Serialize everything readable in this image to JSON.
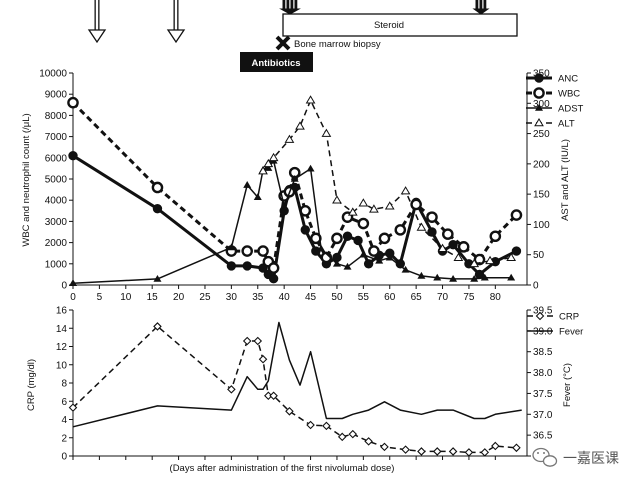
{
  "annotations": {
    "steroid": "Steroid",
    "biopsy": "Bone marrow biopsy",
    "antibiotics": "Antibiotics"
  },
  "watermark": "一嘉医课",
  "colors": {
    "line": "#111111",
    "antibiotics_bg": "#111111",
    "antibiotics_fg": "#ffffff",
    "background": "#ffffff"
  },
  "chart_data": [
    {
      "type": "line",
      "panel": "top",
      "xlabel": "",
      "ylabel_left": "WBC and neutrophil count (/μL)",
      "ylabel_right": "AST and ALT (IU/L)",
      "xlim": [
        0,
        86
      ],
      "ylim_left": [
        0,
        10000
      ],
      "ylim_right": [
        0,
        350
      ],
      "x_ticks": [
        0,
        5,
        10,
        15,
        20,
        25,
        30,
        35,
        40,
        45,
        50,
        55,
        60,
        65,
        70,
        75,
        80
      ],
      "y_ticks_left": [
        0,
        1000,
        2000,
        3000,
        4000,
        5000,
        6000,
        7000,
        8000,
        9000,
        10000
      ],
      "y_ticks_right": [
        0,
        50,
        100,
        150,
        200,
        250,
        300,
        350
      ],
      "legend": [
        "ANC",
        "WBC",
        "ADST",
        "ALT"
      ],
      "legend_position": "top-right",
      "series": [
        {
          "name": "ANC",
          "axis": "left",
          "style": "solid-thick",
          "marker": "filled-circle",
          "x": [
            0,
            16,
            30,
            33,
            36,
            37,
            38,
            40,
            41,
            42,
            44,
            46,
            48,
            50,
            52,
            54,
            56,
            58,
            60,
            62,
            65,
            68,
            70,
            72,
            75,
            77,
            80,
            84
          ],
          "y": [
            6100,
            3600,
            900,
            900,
            800,
            500,
            300,
            3500,
            4500,
            4600,
            2600,
            1600,
            1000,
            1300,
            2300,
            2100,
            1000,
            1400,
            1500,
            1000,
            3900,
            2500,
            1600,
            1900,
            1000,
            500,
            1100,
            1600
          ]
        },
        {
          "name": "WBC",
          "axis": "left",
          "style": "dashed-thick",
          "marker": "open-circle",
          "x": [
            0,
            16,
            30,
            33,
            36,
            37,
            38,
            40,
            41,
            42,
            44,
            46,
            48,
            50,
            52,
            55,
            57,
            59,
            62,
            65,
            68,
            71,
            74,
            77,
            80,
            84
          ],
          "y": [
            8600,
            4600,
            1600,
            1600,
            1600,
            1100,
            800,
            4200,
            4400,
            5300,
            3500,
            2200,
            1300,
            2200,
            3200,
            2900,
            1600,
            2200,
            2600,
            3800,
            3200,
            2400,
            1800,
            1200,
            2300,
            3300
          ]
        },
        {
          "name": "ADST",
          "axis": "right",
          "style": "solid",
          "marker": "filled-triangle",
          "x": [
            0,
            16,
            30,
            33,
            35,
            36,
            37,
            38,
            40,
            42,
            45,
            47,
            50,
            52,
            55,
            58,
            60,
            63,
            66,
            69,
            72,
            76,
            78,
            83
          ],
          "y": [
            3,
            10,
            62,
            165,
            145,
            190,
            193,
            205,
            130,
            175,
            192,
            60,
            35,
            30,
            50,
            40,
            45,
            25,
            15,
            12,
            10,
            10,
            12,
            12
          ]
        },
        {
          "name": "ALT",
          "axis": "right",
          "style": "dashed",
          "marker": "open-triangle",
          "x": [
            36,
            37,
            38,
            41,
            43,
            45,
            48,
            50,
            53,
            55,
            57,
            60,
            63,
            66,
            70,
            73,
            76,
            79,
            83
          ],
          "y": [
            188,
            200,
            210,
            240,
            262,
            305,
            250,
            140,
            120,
            135,
            125,
            130,
            155,
            95,
            60,
            45,
            35,
            40,
            45
          ]
        }
      ]
    },
    {
      "type": "line",
      "panel": "bottom",
      "xlabel": "(Days after administration of the first nivolumab dose)",
      "ylabel_left": "CRP (mg/dl)",
      "ylabel_right": "Fever (°C)",
      "xlim": [
        0,
        86
      ],
      "ylim_left": [
        0,
        16
      ],
      "ylim_right": [
        36.0,
        39.5
      ],
      "y_ticks_left": [
        0,
        2,
        4,
        6,
        8,
        10,
        12,
        14,
        16
      ],
      "y_ticks_right": [
        36.0,
        36.5,
        37.0,
        37.5,
        38.0,
        38.5,
        39.0,
        39.5
      ],
      "y_tick_labels_right": [
        "",
        "36.5",
        "37.0",
        "37.5",
        "38.0",
        "38.5",
        "39.0",
        "39.5"
      ],
      "legend": [
        "CRP",
        "Fever"
      ],
      "legend_position": "top-right",
      "series": [
        {
          "name": "CRP",
          "axis": "left",
          "style": "dashed",
          "marker": "open-diamond",
          "x": [
            0,
            16,
            30,
            33,
            35,
            36,
            37,
            38,
            41,
            45,
            48,
            51,
            53,
            56,
            59,
            63,
            66,
            69,
            72,
            75,
            78,
            80,
            84
          ],
          "y": [
            5.3,
            14.2,
            7.3,
            12.6,
            12.6,
            10.6,
            6.6,
            6.6,
            4.9,
            3.4,
            3.3,
            2.1,
            2.4,
            1.6,
            1.0,
            0.7,
            0.5,
            0.5,
            0.5,
            0.4,
            0.4,
            1.1,
            0.9
          ]
        },
        {
          "name": "Fever",
          "axis": "right",
          "style": "solid",
          "marker": "none",
          "x": [
            0,
            16,
            30,
            33,
            35,
            36,
            37,
            38,
            39,
            41,
            43,
            45,
            48,
            51,
            53,
            56,
            59,
            62,
            66,
            69,
            72,
            76,
            78,
            80,
            85
          ],
          "y": [
            36.7,
            37.2,
            37.1,
            37.9,
            37.6,
            37.6,
            37.8,
            38.5,
            39.2,
            38.3,
            37.7,
            38.5,
            36.9,
            36.9,
            37.0,
            37.1,
            37.3,
            37.1,
            37.0,
            37.1,
            37.1,
            36.9,
            36.9,
            37.0,
            37.1
          ]
        }
      ]
    }
  ]
}
